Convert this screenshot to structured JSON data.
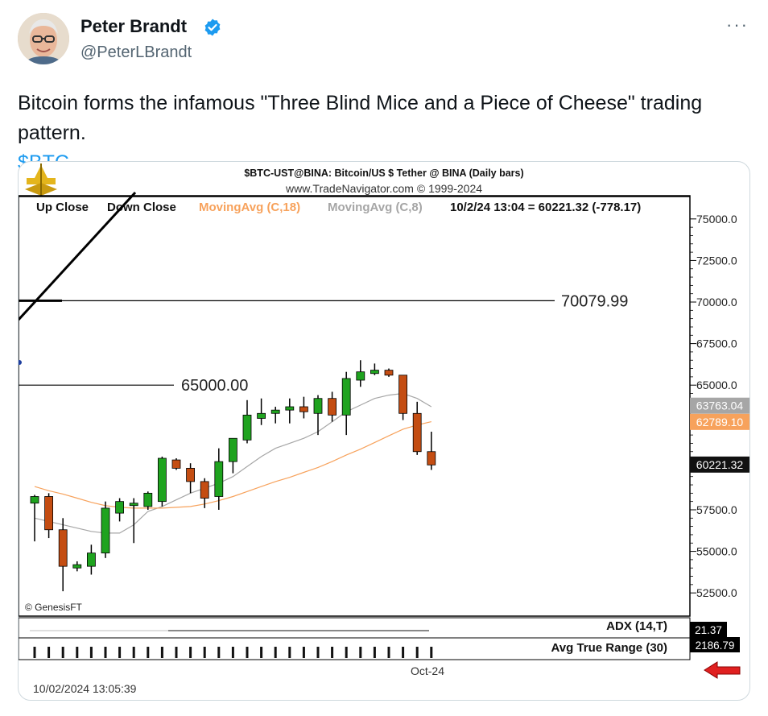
{
  "post": {
    "author_name": "Peter Brandt",
    "handle": "@PeterLBrandt",
    "more_label": "···",
    "text": "Bitcoin forms the infamous \"Three Blind Mice and a Piece of Cheese\" trading pattern.",
    "cashtag": "$BTC"
  },
  "colors": {
    "bull": "#1fa31f",
    "bear": "#c44d12",
    "ma18": "#f7a25c",
    "ma8": "#a6a6a6",
    "link": "#1d9bf0"
  },
  "icons": {
    "verified": "verified-badge-icon",
    "more": "more-icon",
    "logo": "trade-navigator-logo-icon",
    "arrow": "red-arrow-icon"
  },
  "chart_data": {
    "type": "candlestick",
    "title": "$BTC-UST@BINA:  Bitcoin/US $ Tether @ BINA  (Daily bars)",
    "subtitle": "www.TradeNavigator.com © 1999-2024",
    "legend": {
      "up_close": "Up Close",
      "down_close": "Down Close",
      "ma18": "MovingAvg (C,18)",
      "ma8": "MovingAvg (C,8)",
      "quote": "10/2/24 13:04 = 60221.32 (-778.17)"
    },
    "y_ticks": [
      "75000.0",
      "72500.0",
      "70000.0",
      "67500.0",
      "65000.0",
      "57500.0",
      "55000.0",
      "52500.0"
    ],
    "tick_values": [
      75000,
      72500,
      70000,
      67500,
      65000,
      57500,
      55000,
      52500
    ],
    "ylim": [
      51200,
      76300
    ],
    "price_tags": [
      {
        "text": "63763.04",
        "value": 63763.04,
        "color": "#a6a6a6"
      },
      {
        "text": "62789.10",
        "value": 62789.1,
        "color": "#f7a25c"
      },
      {
        "text": "60221.32",
        "value": 60221.32,
        "color": "#111111"
      }
    ],
    "levels": [
      {
        "label": "70079.99",
        "value": 70079.99
      },
      {
        "label": "65000.00",
        "value": 65000.0
      }
    ],
    "candles": [
      {
        "o": 57900,
        "h": 58400,
        "l": 55600,
        "c": 58300
      },
      {
        "o": 58300,
        "h": 58500,
        "l": 55800,
        "c": 56300
      },
      {
        "o": 56300,
        "h": 57000,
        "l": 52600,
        "c": 54100
      },
      {
        "o": 54000,
        "h": 54400,
        "l": 53800,
        "c": 54200
      },
      {
        "o": 54100,
        "h": 55400,
        "l": 53600,
        "c": 54900
      },
      {
        "o": 54900,
        "h": 58000,
        "l": 54600,
        "c": 57600
      },
      {
        "o": 57300,
        "h": 58200,
        "l": 56800,
        "c": 58000
      },
      {
        "o": 57900,
        "h": 58200,
        "l": 55500,
        "c": 57900
      },
      {
        "o": 57700,
        "h": 58600,
        "l": 57500,
        "c": 58500
      },
      {
        "o": 58000,
        "h": 60700,
        "l": 57700,
        "c": 60600
      },
      {
        "o": 60500,
        "h": 60600,
        "l": 59900,
        "c": 60000
      },
      {
        "o": 60000,
        "h": 60300,
        "l": 58500,
        "c": 59200
      },
      {
        "o": 59200,
        "h": 59400,
        "l": 57600,
        "c": 58200
      },
      {
        "o": 58300,
        "h": 61200,
        "l": 57500,
        "c": 60400
      },
      {
        "o": 60400,
        "h": 61800,
        "l": 59700,
        "c": 61800
      },
      {
        "o": 61700,
        "h": 64100,
        "l": 61500,
        "c": 63200
      },
      {
        "o": 63000,
        "h": 64200,
        "l": 62600,
        "c": 63300
      },
      {
        "o": 63300,
        "h": 63700,
        "l": 62700,
        "c": 63500
      },
      {
        "o": 63500,
        "h": 64200,
        "l": 62700,
        "c": 63700
      },
      {
        "o": 63700,
        "h": 64300,
        "l": 63000,
        "c": 63400
      },
      {
        "o": 63300,
        "h": 64400,
        "l": 62000,
        "c": 64200
      },
      {
        "o": 64200,
        "h": 64600,
        "l": 62800,
        "c": 63200
      },
      {
        "o": 63200,
        "h": 65800,
        "l": 62000,
        "c": 65400
      },
      {
        "o": 65300,
        "h": 66500,
        "l": 64900,
        "c": 65800
      },
      {
        "o": 65700,
        "h": 66300,
        "l": 65600,
        "c": 65900
      },
      {
        "o": 65900,
        "h": 66000,
        "l": 65500,
        "c": 65600
      },
      {
        "o": 65600,
        "h": 65600,
        "l": 62900,
        "c": 63300
      },
      {
        "o": 63300,
        "h": 64000,
        "l": 60800,
        "c": 61000
      },
      {
        "o": 61000,
        "h": 62200,
        "l": 59900,
        "c": 60200
      }
    ],
    "ma18": [
      58900,
      58650,
      58450,
      58200,
      57950,
      57750,
      57650,
      57600,
      57600,
      57600,
      57650,
      57700,
      57850,
      58050,
      58300,
      58600,
      58900,
      59200,
      59450,
      59750,
      60050,
      60400,
      60800,
      61150,
      61550,
      61950,
      62350,
      62600,
      62800
    ],
    "ma8": [
      57000,
      56800,
      56600,
      56400,
      56200,
      56100,
      56100,
      56600,
      57400,
      57700,
      58100,
      58500,
      58800,
      59100,
      59500,
      60100,
      60700,
      61200,
      61500,
      61800,
      62200,
      62800,
      63400,
      63800,
      64200,
      64400,
      64500,
      64200,
      63700
    ],
    "indicators": {
      "adx_label": "ADX (14,T)",
      "adx_value": "21.37",
      "atr_label": "Avg True Range (30)",
      "atr_value": "2186.79"
    },
    "x_label": "Oct-24",
    "timestamp": "10/02/2024 13:05:39",
    "watermark": "© GenesisFT"
  }
}
